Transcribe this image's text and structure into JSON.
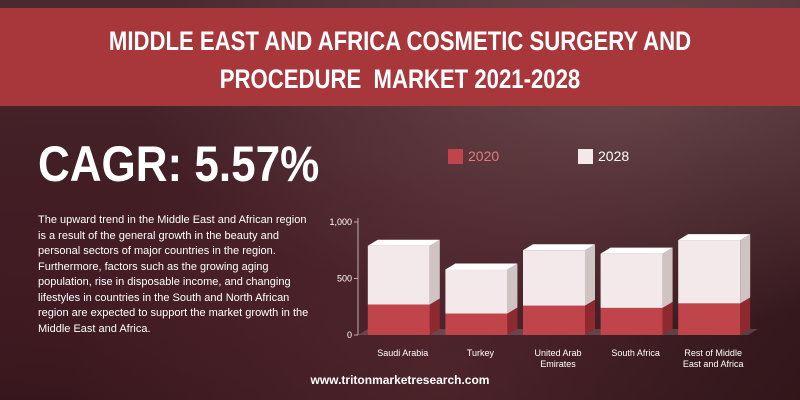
{
  "header": {
    "title_line1": "MIDDLE EAST AND AFRICA COSMETIC SURGERY AND",
    "title_line2": "PROCEDURE  MARKET 2021-2028"
  },
  "cagr": "CAGR: 5.57%",
  "description": "The upward trend in the Middle East and African region is a result of the general growth in the beauty and personal sectors of major countries in the region. Furthermore, factors such as the growing aging population, rise in disposable income, and changing lifestyles in countries in the South and North African region are expected to support the market growth in the Middle East and Africa.",
  "footer": "www.tritonmarketresearch.com",
  "colors": {
    "accent": "#a8373c",
    "series_2020": "#c0454a",
    "series_2028": "#f3e9ea"
  },
  "chart_data": {
    "type": "bar",
    "stacked": true,
    "categories": [
      "Saudi Arabia",
      "Turkey",
      "United Arab Emirates",
      "South Africa",
      "Rest of Middle East and Africa"
    ],
    "category_lines": [
      [
        "Saudi Arabia"
      ],
      [
        "Turkey"
      ],
      [
        "United Arab",
        "Emirates"
      ],
      [
        "South Africa"
      ],
      [
        "Rest of Middle",
        "East and Africa"
      ]
    ],
    "series": [
      {
        "name": "2020",
        "values": [
          270,
          190,
          260,
          240,
          280
        ]
      },
      {
        "name": "2028",
        "values": [
          520,
          390,
          490,
          480,
          560
        ]
      }
    ],
    "legend": [
      "2020",
      "2028"
    ],
    "yticks": [
      "0",
      "500",
      "1,000"
    ],
    "ylim": [
      0,
      1000
    ],
    "legend_position": "top"
  }
}
